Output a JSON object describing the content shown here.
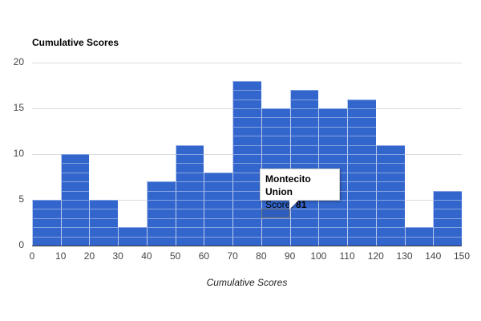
{
  "chart_data": {
    "type": "bar",
    "subtype": "histogram",
    "title": "Cumulative Scores",
    "xlabel": "Cumulative Scores",
    "ylabel": "",
    "bins": [
      [
        0,
        10
      ],
      [
        10,
        20
      ],
      [
        20,
        30
      ],
      [
        30,
        40
      ],
      [
        40,
        50
      ],
      [
        50,
        60
      ],
      [
        60,
        70
      ],
      [
        70,
        80
      ],
      [
        80,
        90
      ],
      [
        90,
        100
      ],
      [
        100,
        110
      ],
      [
        110,
        120
      ],
      [
        120,
        130
      ],
      [
        130,
        140
      ],
      [
        140,
        150
      ]
    ],
    "categories": [
      "0-10",
      "10-20",
      "20-30",
      "30-40",
      "40-50",
      "50-60",
      "60-70",
      "70-80",
      "80-90",
      "90-100",
      "100-110",
      "110-120",
      "120-130",
      "130-140",
      "140-150"
    ],
    "values": [
      5,
      10,
      5,
      2,
      7,
      11,
      8,
      18,
      15,
      17,
      15,
      16,
      11,
      2,
      6
    ],
    "xlim": [
      0,
      150
    ],
    "ylim": [
      0,
      20
    ],
    "x_ticks": [
      "0",
      "10",
      "20",
      "30",
      "40",
      "50",
      "60",
      "70",
      "80",
      "90",
      "100",
      "110",
      "120",
      "130",
      "140",
      "150"
    ],
    "y_ticks": [
      "0",
      "5",
      "10",
      "15",
      "20"
    ],
    "grid": true,
    "legend": "none",
    "bar_color": "#3366cc",
    "tooltip": {
      "label": "Montecito Union",
      "key": "Score:",
      "value": "81",
      "bin_index": 8,
      "block_index": 3
    }
  }
}
